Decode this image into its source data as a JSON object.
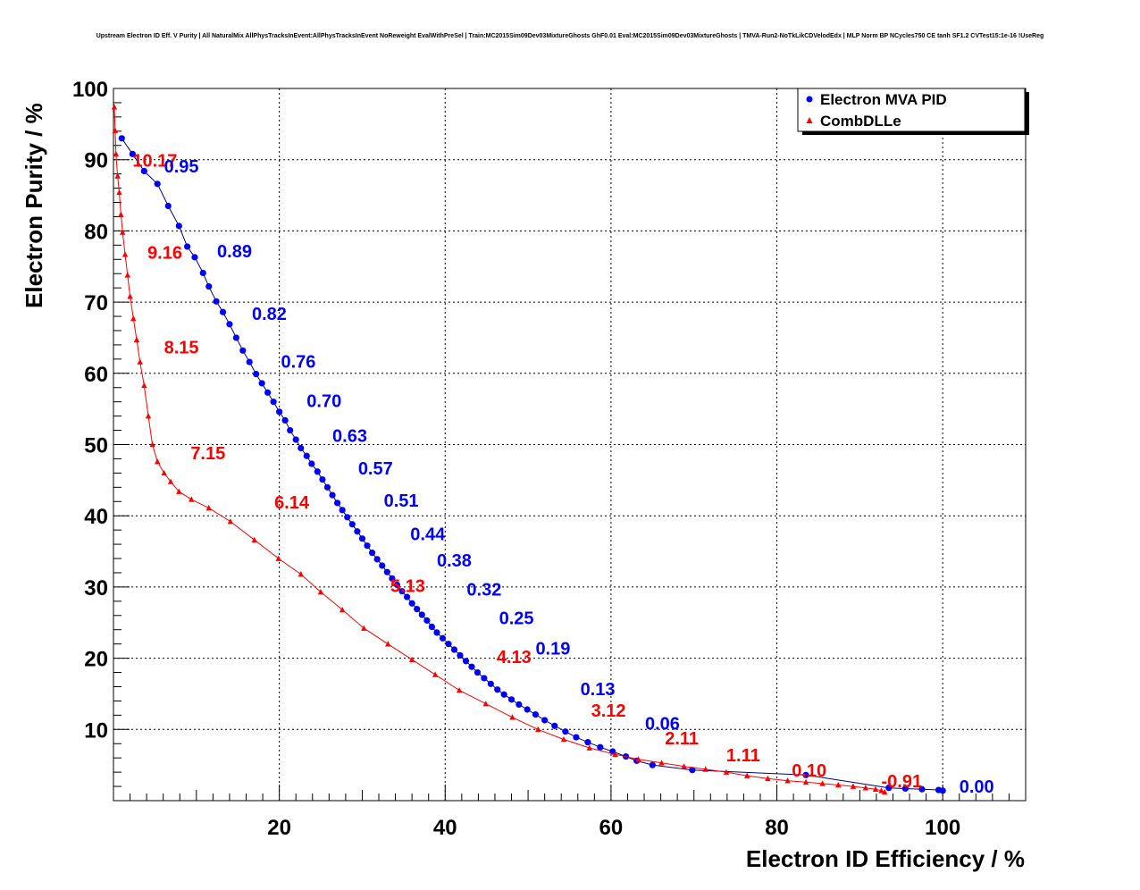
{
  "chart_data": {
    "type": "line",
    "title": "Upstream Electron ID Eff. V Purity | All NaturalMix AllPhysTracksInEvent:AllPhysTracksInEvent NoReweight EvalWithPreSel | Train:MC2015Sim09Dev03MixtureGhosts GhF0.01 Eval:MC2015Sim09Dev03MixtureGhosts | TMVA-Run2-NoTkLikCDVelodEdx | MLP Norm BP NCycles750 CE tanh SF1.2 CVTest15:1e-16 !UseReg",
    "xlabel": "Electron ID Efficiency / %",
    "ylabel": "Electron Purity / %",
    "xlim": [
      0,
      110
    ],
    "ylim": [
      0,
      100
    ],
    "x_ticks": [
      20,
      40,
      60,
      80,
      100
    ],
    "y_ticks": [
      10,
      20,
      30,
      40,
      50,
      60,
      70,
      80,
      90,
      100
    ],
    "grid": true,
    "legend": "top-right",
    "series": [
      {
        "name": "Electron MVA PID",
        "color": "#0000ff",
        "marker": "circle",
        "x": [
          1.0,
          2.3,
          3.7,
          5.3,
          6.6,
          7.9,
          8.9,
          9.8,
          10.8,
          11.5,
          12.4,
          13.2,
          14.0,
          14.8,
          15.6,
          16.4,
          17.2,
          17.9,
          18.6,
          19.3,
          20.0,
          20.7,
          21.3,
          22.0,
          22.6,
          23.3,
          23.9,
          24.6,
          25.2,
          25.8,
          26.4,
          27.0,
          27.6,
          28.2,
          28.8,
          29.4,
          30.0,
          30.6,
          31.2,
          31.8,
          32.4,
          33.0,
          33.6,
          34.2,
          34.8,
          35.4,
          36.0,
          36.6,
          37.2,
          37.8,
          38.4,
          39.0,
          39.7,
          40.4,
          41.1,
          41.8,
          42.5,
          43.2,
          43.9,
          44.7,
          45.5,
          46.3,
          47.1,
          48.0,
          48.9,
          49.9,
          50.9,
          52.0,
          53.2,
          54.5,
          55.8,
          57.2,
          58.7,
          60.2,
          61.8,
          63.1,
          65.0,
          69.8,
          83.5,
          93.5,
          95.5,
          97.5,
          99.5,
          100.0
        ],
        "y": [
          93.0,
          90.8,
          88.4,
          86.6,
          83.5,
          80.7,
          77.8,
          76.3,
          74.1,
          72.2,
          70.1,
          68.6,
          66.9,
          65.0,
          63.2,
          61.6,
          59.9,
          58.6,
          57.3,
          56.0,
          54.6,
          53.4,
          52.0,
          50.7,
          49.5,
          48.4,
          47.3,
          46.2,
          45.1,
          44.0,
          42.9,
          41.8,
          40.8,
          39.8,
          38.8,
          37.8,
          36.8,
          35.8,
          34.8,
          33.9,
          33.0,
          32.1,
          31.2,
          30.3,
          29.4,
          28.6,
          27.7,
          26.9,
          26.1,
          25.3,
          24.4,
          23.6,
          22.8,
          22.0,
          21.2,
          20.4,
          19.6,
          18.8,
          18.0,
          17.2,
          16.4,
          15.6,
          14.9,
          14.2,
          13.5,
          12.8,
          12.1,
          11.3,
          10.5,
          9.7,
          8.9,
          8.2,
          7.5,
          6.9,
          6.2,
          5.6,
          5.0,
          4.3,
          3.6,
          1.8,
          1.7,
          1.6,
          1.5,
          1.4
        ]
      },
      {
        "name": "CombDLLe",
        "color": "#ff0000",
        "marker": "triangle",
        "x": [
          0.1,
          0.2,
          0.3,
          0.5,
          0.7,
          0.9,
          1.1,
          1.4,
          1.7,
          2.0,
          2.4,
          2.8,
          3.2,
          3.7,
          4.2,
          4.7,
          5.3,
          6.1,
          6.9,
          7.9,
          9.4,
          11.5,
          14.1,
          17.0,
          19.9,
          22.6,
          25.0,
          27.6,
          30.2,
          33.1,
          36.0,
          38.8,
          41.7,
          44.9,
          48.1,
          51.2,
          54.3,
          57.4,
          60.5,
          63.3,
          66.1,
          68.8,
          71.4,
          73.9,
          76.4,
          78.9,
          81.3,
          83.5,
          85.5,
          87.4,
          89.2,
          90.7,
          91.9,
          92.6,
          93.0
        ],
        "y": [
          97.4,
          94.1,
          90.8,
          87.7,
          85.4,
          82.3,
          79.8,
          76.7,
          73.8,
          70.8,
          67.7,
          64.7,
          61.6,
          58.3,
          54.0,
          50.0,
          47.6,
          46.0,
          44.8,
          43.4,
          42.3,
          41.1,
          39.2,
          36.6,
          34.0,
          31.8,
          29.3,
          26.8,
          24.2,
          22.0,
          19.8,
          17.7,
          15.5,
          13.6,
          11.7,
          10.0,
          8.6,
          7.4,
          6.5,
          5.8,
          5.3,
          4.8,
          4.4,
          4.0,
          3.5,
          3.1,
          2.8,
          2.6,
          2.4,
          2.2,
          2.0,
          1.8,
          1.6,
          1.4,
          1.2
        ]
      }
    ],
    "annotations": [
      {
        "text": "10.17",
        "x": 2.3,
        "y": 89.0,
        "color": "#ff0000"
      },
      {
        "text": "0.95",
        "x": 6.1,
        "y": 88.2,
        "color": "#0000ff"
      },
      {
        "text": "9.16",
        "x": 4.1,
        "y": 76.1,
        "color": "#ff0000"
      },
      {
        "text": "0.89",
        "x": 12.5,
        "y": 76.3,
        "color": "#0000ff"
      },
      {
        "text": "0.82",
        "x": 16.7,
        "y": 67.5,
        "color": "#0000ff"
      },
      {
        "text": "8.15",
        "x": 6.1,
        "y": 62.8,
        "color": "#ff0000"
      },
      {
        "text": "0.76",
        "x": 20.2,
        "y": 60.8,
        "color": "#0000ff"
      },
      {
        "text": "0.70",
        "x": 23.3,
        "y": 55.3,
        "color": "#0000ff"
      },
      {
        "text": "0.63",
        "x": 26.4,
        "y": 50.4,
        "color": "#0000ff"
      },
      {
        "text": "7.15",
        "x": 9.3,
        "y": 47.9,
        "color": "#ff0000"
      },
      {
        "text": "0.57",
        "x": 29.5,
        "y": 45.8,
        "color": "#0000ff"
      },
      {
        "text": "0.51",
        "x": 32.6,
        "y": 41.3,
        "color": "#0000ff"
      },
      {
        "text": "6.14",
        "x": 19.4,
        "y": 41.0,
        "color": "#ff0000"
      },
      {
        "text": "0.44",
        "x": 35.8,
        "y": 36.6,
        "color": "#0000ff"
      },
      {
        "text": "0.38",
        "x": 39.0,
        "y": 32.9,
        "color": "#0000ff"
      },
      {
        "text": "0.32",
        "x": 42.6,
        "y": 28.8,
        "color": "#0000ff"
      },
      {
        "text": "5.13",
        "x": 33.4,
        "y": 29.3,
        "color": "#ff0000"
      },
      {
        "text": "0.25",
        "x": 46.5,
        "y": 24.8,
        "color": "#0000ff"
      },
      {
        "text": "0.19",
        "x": 50.9,
        "y": 20.5,
        "color": "#0000ff"
      },
      {
        "text": "4.13",
        "x": 46.2,
        "y": 19.3,
        "color": "#ff0000"
      },
      {
        "text": "0.13",
        "x": 56.3,
        "y": 14.8,
        "color": "#0000ff"
      },
      {
        "text": "3.12",
        "x": 57.6,
        "y": 11.8,
        "color": "#ff0000"
      },
      {
        "text": "0.06",
        "x": 64.1,
        "y": 10.0,
        "color": "#0000ff"
      },
      {
        "text": "2.11",
        "x": 66.5,
        "y": 7.9,
        "color": "#ff0000"
      },
      {
        "text": "1.11",
        "x": 73.9,
        "y": 5.5,
        "color": "#ff0000"
      },
      {
        "text": "0.10",
        "x": 81.8,
        "y": 3.4,
        "color": "#ff0000"
      },
      {
        "text": "-0.91",
        "x": 92.6,
        "y": 1.9,
        "color": "#ff0000"
      },
      {
        "text": "0.00",
        "x": 102.0,
        "y": 1.1,
        "color": "#0000ff"
      }
    ]
  }
}
